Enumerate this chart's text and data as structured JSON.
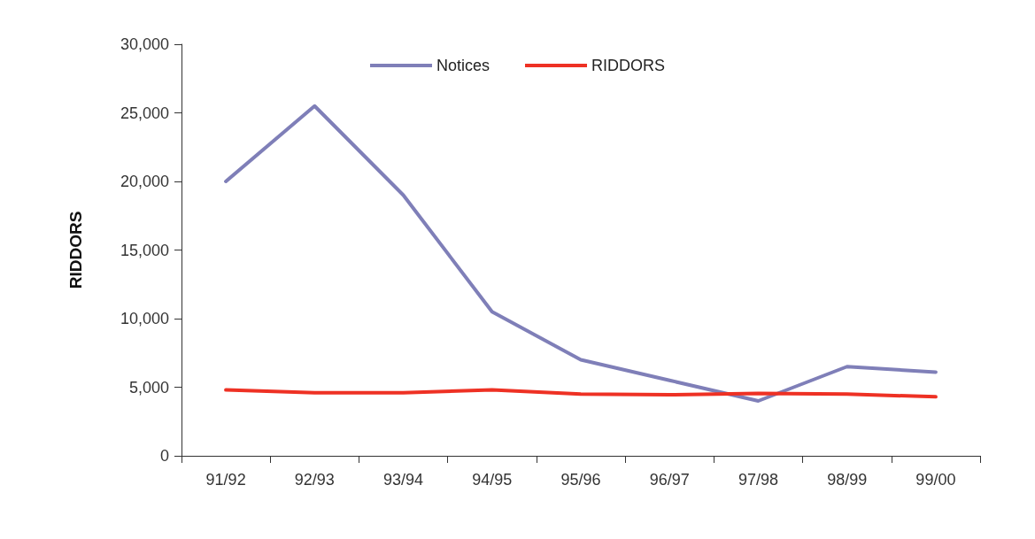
{
  "chart_data": {
    "type": "line",
    "ylabel": "RIDDORS",
    "categories": [
      "91/92",
      "92/93",
      "93/94",
      "94/95",
      "95/96",
      "96/97",
      "97/98",
      "98/99",
      "99/00"
    ],
    "series": [
      {
        "name": "Notices",
        "color": "#7f7fb8",
        "values": [
          20000,
          25500,
          19000,
          10500,
          7000,
          5500,
          4000,
          6500,
          6100
        ]
      },
      {
        "name": "RIDDORS",
        "color": "#ee3124",
        "values": [
          4800,
          4600,
          4600,
          4800,
          4500,
          4450,
          4550,
          4500,
          4300
        ]
      }
    ],
    "ylim": [
      0,
      30000
    ],
    "yticks": [
      0,
      {
        "value": 5000,
        "label": "5,000"
      },
      {
        "value": 10000,
        "label": "10,000"
      },
      {
        "value": 15000,
        "label": "15,000"
      },
      {
        "value": 20000,
        "label": "20,000"
      },
      {
        "value": 25000,
        "label": "25,000"
      },
      {
        "value": 30000,
        "label": "30,000"
      }
    ],
    "grid": false,
    "legend": "top",
    "marker": "none",
    "line_style": "solid"
  }
}
